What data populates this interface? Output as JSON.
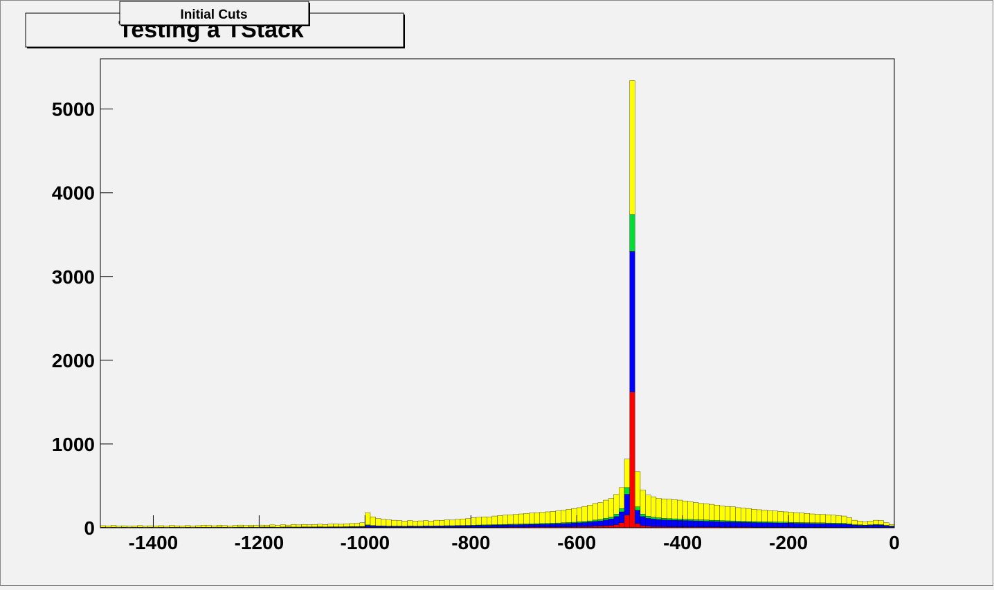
{
  "chart_data": {
    "type": "stacked_histogram",
    "title": "Testing a TStack",
    "subtitle": "Initial Cuts",
    "xlim": [
      -1500,
      0
    ],
    "xticks": [
      -1400,
      -1200,
      -1000,
      -800,
      -600,
      -400,
      -200,
      0
    ],
    "ylim": [
      0,
      5600
    ],
    "yticks": [
      0,
      1000,
      2000,
      3000,
      4000,
      5000
    ],
    "bins": [
      -1500,
      -1490,
      -1480,
      -1470,
      -1460,
      -1450,
      -1440,
      -1430,
      -1420,
      -1410,
      -1400,
      -1390,
      -1380,
      -1370,
      -1360,
      -1350,
      -1340,
      -1330,
      -1320,
      -1310,
      -1300,
      -1290,
      -1280,
      -1270,
      -1260,
      -1250,
      -1240,
      -1230,
      -1220,
      -1210,
      -1200,
      -1190,
      -1180,
      -1170,
      -1160,
      -1150,
      -1140,
      -1130,
      -1120,
      -1110,
      -1100,
      -1090,
      -1080,
      -1070,
      -1060,
      -1050,
      -1040,
      -1030,
      -1020,
      -1010,
      -1000,
      -990,
      -980,
      -970,
      -960,
      -950,
      -940,
      -930,
      -920,
      -910,
      -900,
      -890,
      -880,
      -870,
      -860,
      -850,
      -840,
      -830,
      -820,
      -810,
      -800,
      -790,
      -780,
      -770,
      -760,
      -750,
      -740,
      -730,
      -720,
      -710,
      -700,
      -690,
      -680,
      -670,
      -660,
      -650,
      -640,
      -630,
      -620,
      -610,
      -600,
      -590,
      -580,
      -570,
      -560,
      -550,
      -540,
      -530,
      -520,
      -510,
      -500,
      -490,
      -480,
      -470,
      -460,
      -450,
      -440,
      -430,
      -420,
      -410,
      -400,
      -390,
      -380,
      -370,
      -360,
      -350,
      -340,
      -330,
      -320,
      -310,
      -300,
      -290,
      -280,
      -270,
      -260,
      -250,
      -240,
      -230,
      -220,
      -210,
      -200,
      -190,
      -180,
      -170,
      -160,
      -150,
      -140,
      -130,
      -120,
      -110,
      -100,
      -90,
      -80,
      -70,
      -60,
      -50,
      -40,
      -30,
      -20,
      -10,
      0
    ],
    "series": [
      {
        "color": "#ff0000",
        "values": [
          2,
          1,
          2,
          1,
          2,
          1,
          2,
          2,
          1,
          2,
          1,
          2,
          1,
          2,
          2,
          1,
          2,
          1,
          2,
          2,
          2,
          1,
          2,
          2,
          1,
          2,
          2,
          1,
          2,
          2,
          2,
          2,
          2,
          1,
          2,
          3,
          2,
          2,
          3,
          2,
          3,
          3,
          2,
          3,
          3,
          3,
          3,
          4,
          4,
          4,
          8,
          6,
          5,
          5,
          4,
          4,
          4,
          4,
          5,
          4,
          4,
          5,
          4,
          5,
          5,
          5,
          5,
          6,
          6,
          6,
          6,
          7,
          7,
          7,
          8,
          8,
          8,
          9,
          9,
          9,
          9,
          10,
          10,
          10,
          10,
          11,
          11,
          12,
          12,
          13,
          14,
          15,
          16,
          18,
          20,
          22,
          26,
          35,
          60,
          150,
          1620,
          50,
          25,
          18,
          15,
          14,
          13,
          12,
          12,
          11,
          11,
          11,
          10,
          10,
          10,
          10,
          10,
          9,
          9,
          9,
          9,
          9,
          9,
          8,
          8,
          8,
          8,
          8,
          8,
          8,
          8,
          7,
          7,
          7,
          7,
          7,
          7,
          7,
          6,
          6,
          6,
          6,
          5,
          5,
          5,
          5,
          5,
          5,
          4,
          3
        ]
      },
      {
        "color": "#0000ff",
        "values": [
          4,
          3,
          4,
          3,
          4,
          3,
          3,
          4,
          3,
          4,
          3,
          4,
          3,
          4,
          4,
          3,
          4,
          3,
          4,
          4,
          4,
          4,
          4,
          4,
          3,
          4,
          5,
          4,
          5,
          4,
          5,
          5,
          5,
          4,
          5,
          6,
          5,
          5,
          6,
          6,
          6,
          7,
          6,
          7,
          7,
          7,
          8,
          8,
          8,
          9,
          20,
          16,
          14,
          13,
          12,
          12,
          12,
          11,
          12,
          12,
          12,
          13,
          13,
          14,
          14,
          15,
          15,
          16,
          17,
          18,
          19,
          20,
          21,
          22,
          23,
          24,
          25,
          26,
          27,
          28,
          29,
          30,
          31,
          32,
          33,
          34,
          36,
          38,
          40,
          42,
          45,
          48,
          52,
          58,
          62,
          72,
          80,
          100,
          130,
          250,
          1680,
          160,
          110,
          95,
          90,
          85,
          82,
          80,
          78,
          76,
          75,
          73,
          72,
          70,
          68,
          66,
          64,
          62,
          61,
          60,
          58,
          57,
          56,
          54,
          53,
          52,
          51,
          50,
          49,
          48,
          47,
          46,
          45,
          44,
          43,
          42,
          42,
          41,
          40,
          39,
          38,
          33,
          26,
          24,
          22,
          25,
          28,
          27,
          20,
          14
        ]
      },
      {
        "color": "#00dd33",
        "values": [
          1,
          1,
          1,
          1,
          1,
          1,
          1,
          1,
          1,
          1,
          1,
          1,
          1,
          1,
          1,
          1,
          1,
          1,
          1,
          1,
          1,
          1,
          2,
          1,
          1,
          1,
          2,
          1,
          2,
          1,
          2,
          2,
          2,
          1,
          2,
          2,
          2,
          2,
          2,
          2,
          2,
          2,
          2,
          2,
          2,
          2,
          2,
          3,
          3,
          3,
          6,
          5,
          4,
          4,
          4,
          4,
          4,
          3,
          4,
          4,
          4,
          4,
          4,
          4,
          4,
          5,
          5,
          5,
          5,
          5,
          5,
          6,
          6,
          6,
          6,
          7,
          7,
          7,
          7,
          8,
          8,
          8,
          8,
          9,
          9,
          9,
          10,
          10,
          11,
          11,
          12,
          13,
          14,
          16,
          17,
          20,
          22,
          28,
          40,
          80,
          440,
          40,
          28,
          24,
          22,
          20,
          19,
          18,
          17,
          17,
          16,
          16,
          15,
          15,
          15,
          14,
          14,
          14,
          13,
          13,
          13,
          12,
          12,
          12,
          12,
          11,
          11,
          11,
          11,
          11,
          10,
          10,
          10,
          10,
          10,
          10,
          10,
          9,
          9,
          9,
          9,
          8,
          6,
          6,
          5,
          6,
          7,
          6,
          5,
          4
        ]
      },
      {
        "color": "#ffff00",
        "values": [
          18,
          17,
          21,
          15,
          17,
          13,
          16,
          19,
          15,
          17,
          17,
          18,
          15,
          21,
          17,
          17,
          19,
          15,
          18,
          23,
          21,
          18,
          22,
          19,
          17,
          21,
          23,
          20,
          21,
          21,
          23,
          21,
          25,
          22,
          27,
          21,
          29,
          25,
          29,
          26,
          29,
          30,
          28,
          32,
          34,
          30,
          35,
          35,
          37,
          44,
          146,
          103,
          87,
          78,
          75,
          70,
          65,
          62,
          64,
          60,
          62,
          63,
          59,
          67,
          65,
          70,
          67,
          73,
          77,
          81,
          90,
          92,
          96,
          93,
          103,
          106,
          110,
          113,
          117,
          120,
          124,
          127,
          131,
          134,
          138,
          141,
          143,
          150,
          157,
          164,
          169,
          179,
          188,
          198,
          201,
          216,
          222,
          237,
          250,
          340,
          1600,
          420,
          287,
          253,
          243,
          231,
          231,
          230,
          228,
          226,
          218,
          210,
          203,
          195,
          192,
          190,
          182,
          175,
          172,
          168,
          160,
          157,
          153,
          146,
          142,
          139,
          135,
          131,
          127,
          123,
          120,
          117,
          113,
          109,
          105,
          101,
          101,
          98,
          95,
          91,
          87,
          73,
          53,
          45,
          38,
          44,
          50,
          47,
          31,
          19
        ]
      }
    ]
  }
}
